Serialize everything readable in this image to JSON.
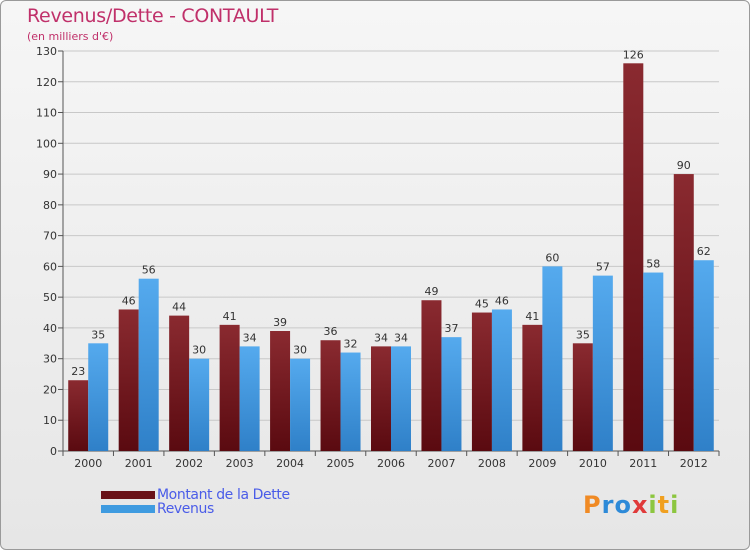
{
  "title": "Revenus/Dette - CONTAULT",
  "subtitle": "(en milliers d'€)",
  "logo": {
    "letters": [
      "P",
      "r",
      "o",
      "x",
      "i",
      "t",
      "i"
    ],
    "colors": [
      "#f08a24",
      "#2d8ad8",
      "#2d8ad8",
      "#e03a3a",
      "#8cc63f",
      "#f0a020",
      "#8cc63f"
    ]
  },
  "chart_data": {
    "type": "bar",
    "categories": [
      "2000",
      "2001",
      "2002",
      "2003",
      "2004",
      "2005",
      "2006",
      "2007",
      "2008",
      "2009",
      "2010",
      "2011",
      "2012"
    ],
    "series": [
      {
        "name": "Montant de la Dette",
        "color": "#7a1a20",
        "values": [
          23,
          46,
          44,
          41,
          39,
          36,
          34,
          49,
          45,
          41,
          35,
          126,
          90
        ]
      },
      {
        "name": "Revenus",
        "color": "#3f9be0",
        "values": [
          35,
          56,
          30,
          34,
          30,
          32,
          34,
          37,
          46,
          60,
          57,
          58,
          62
        ]
      }
    ],
    "ylim": [
      0,
      130
    ],
    "yticks": [
      0,
      10,
      20,
      30,
      40,
      50,
      60,
      70,
      80,
      90,
      100,
      110,
      120,
      130
    ],
    "grid": true,
    "legend": "bottom-left"
  }
}
